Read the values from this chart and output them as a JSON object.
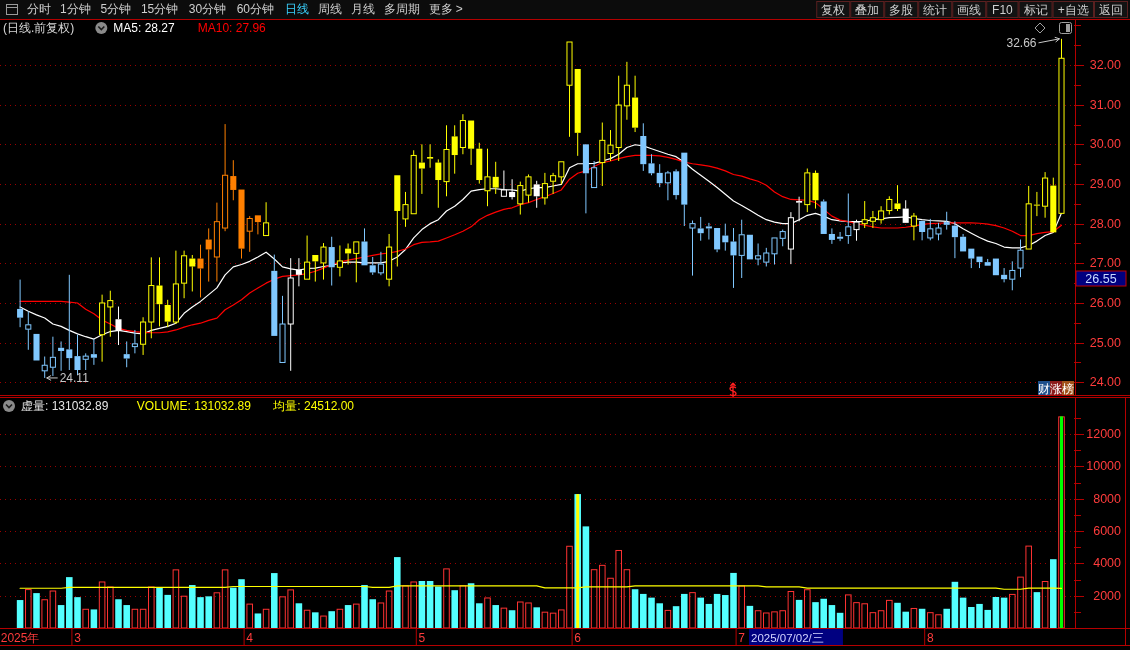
{
  "chart_data": [
    {
      "type": "candlestick",
      "title": "(日线.前复权)",
      "categories": [
        null,
        null,
        null,
        null,
        null,
        null,
        null,
        null,
        null,
        null,
        null,
        null,
        null,
        null,
        null,
        null,
        null,
        null,
        null,
        null,
        null,
        null,
        null,
        null,
        null,
        null,
        null,
        null,
        null,
        null,
        null,
        null,
        null,
        null,
        null,
        null,
        null,
        null,
        null,
        null,
        null,
        null,
        null,
        null,
        null,
        null,
        null,
        null,
        null,
        null,
        null,
        null,
        null,
        null,
        null,
        null,
        null,
        null,
        null,
        null,
        null,
        null,
        null,
        null,
        null,
        null,
        null,
        null,
        null,
        null,
        null,
        null,
        null,
        null,
        null,
        null,
        null,
        null,
        null,
        null,
        null,
        null,
        null,
        null,
        null,
        null,
        null,
        null,
        null,
        null,
        null,
        null,
        null,
        null,
        null,
        null,
        null,
        null,
        null,
        null,
        null,
        null,
        null,
        null,
        null,
        null,
        null,
        null,
        null,
        null,
        null,
        null,
        null,
        null,
        null,
        null,
        null,
        null,
        null,
        null,
        null,
        null,
        null,
        null,
        null,
        null,
        null,
        null
      ],
      "ohlc": [
        [
          25.85,
          26.59,
          25.39,
          25.63
        ],
        [
          25.34,
          25.79,
          24.82,
          25.45
        ],
        [
          25.22,
          25.22,
          24.55,
          24.55
        ],
        [
          24.29,
          24.65,
          24.11,
          24.43
        ],
        [
          24.38,
          25.15,
          24.16,
          24.63
        ],
        [
          24.87,
          25.03,
          24.29,
          24.79
        ],
        [
          24.83,
          26.71,
          24.31,
          24.61
        ],
        [
          24.66,
          25.2,
          24.18,
          24.31
        ],
        [
          24.58,
          24.73,
          24.31,
          24.66
        ],
        [
          24.71,
          25.09,
          24.44,
          24.62
        ],
        [
          25.2,
          26.21,
          24.52,
          26.0
        ],
        [
          25.9,
          26.31,
          25.15,
          26.06
        ],
        [
          25.59,
          25.91,
          24.94,
          25.3
        ],
        [
          24.71,
          25.03,
          24.38,
          24.6
        ],
        [
          24.9,
          25.32,
          24.73,
          24.97
        ],
        [
          24.96,
          25.64,
          24.69,
          25.52
        ],
        [
          25.52,
          27.15,
          25.11,
          26.44
        ],
        [
          26.44,
          27.15,
          25.41,
          25.97
        ],
        [
          25.95,
          26.08,
          25.39,
          25.53
        ],
        [
          25.52,
          27.32,
          25.47,
          26.48
        ],
        [
          26.5,
          27.32,
          26.12,
          27.19
        ],
        [
          27.12,
          27.21,
          26.29,
          26.92
        ],
        [
          27.12,
          27.47,
          26.14,
          26.87
        ],
        [
          27.6,
          27.88,
          26.54,
          27.35
        ],
        [
          27.16,
          28.53,
          26.54,
          28.05
        ],
        [
          27.89,
          30.51,
          27.81,
          29.22
        ],
        [
          29.2,
          29.6,
          28.59,
          28.85
        ],
        [
          28.86,
          28.86,
          27.12,
          27.37
        ],
        [
          27.81,
          28.19,
          27.29,
          28.13
        ],
        [
          28.21,
          28.21,
          27.73,
          28.04
        ],
        [
          27.7,
          28.54,
          27.7,
          28.02
        ],
        [
          26.81,
          27.22,
          25.17,
          25.17
        ],
        [
          24.5,
          26.18,
          24.5,
          25.47
        ],
        [
          25.47,
          27.13,
          24.29,
          26.63
        ],
        [
          26.84,
          27.13,
          26.42,
          26.71
        ],
        [
          26.6,
          27.7,
          26.6,
          27.03
        ],
        [
          27.21,
          27.21,
          26.54,
          27.05
        ],
        [
          27.01,
          27.51,
          26.59,
          27.41
        ],
        [
          27.41,
          27.67,
          26.44,
          26.9
        ],
        [
          26.9,
          27.45,
          26.67,
          27.06
        ],
        [
          27.37,
          27.5,
          26.97,
          27.25
        ],
        [
          27.25,
          27.54,
          26.52,
          27.54
        ],
        [
          27.55,
          27.88,
          26.95,
          26.95
        ],
        [
          26.95,
          27.16,
          26.71,
          26.77
        ],
        [
          26.76,
          27.29,
          26.7,
          26.98
        ],
        [
          26.6,
          27.74,
          26.42,
          27.41
        ],
        [
          29.22,
          29.22,
          26.92,
          28.32
        ],
        [
          28.12,
          28.8,
          27.92,
          28.48
        ],
        [
          28.25,
          29.85,
          28.25,
          29.72
        ],
        [
          29.54,
          30.0,
          28.75,
          29.39
        ],
        [
          29.68,
          30.0,
          29.41,
          29.64
        ],
        [
          29.54,
          29.62,
          28.4,
          29.1
        ],
        [
          29.06,
          30.48,
          28.69,
          29.87
        ],
        [
          30.2,
          30.48,
          29.26,
          29.73
        ],
        [
          29.92,
          30.76,
          29.75,
          30.6
        ],
        [
          30.6,
          30.6,
          29.48,
          29.89
        ],
        [
          29.89,
          30.04,
          29.01,
          29.1
        ],
        [
          28.83,
          29.89,
          28.44,
          29.18
        ],
        [
          29.18,
          29.56,
          28.75,
          28.91
        ],
        [
          28.69,
          29.34,
          28.69,
          28.85
        ],
        [
          28.8,
          29.12,
          28.61,
          28.67
        ],
        [
          28.5,
          29.06,
          28.23,
          28.96
        ],
        [
          28.72,
          29.24,
          28.53,
          29.18
        ],
        [
          28.99,
          29.08,
          28.4,
          28.69
        ],
        [
          28.65,
          29.28,
          28.48,
          29.01
        ],
        [
          29.07,
          29.28,
          28.75,
          29.21
        ],
        [
          29.18,
          29.56,
          28.99,
          29.56
        ],
        [
          31.49,
          32.58,
          30.19,
          32.58
        ],
        [
          31.9,
          31.9,
          29.71,
          30.29
        ],
        [
          30.0,
          30.0,
          28.26,
          29.27
        ],
        [
          28.91,
          29.58,
          28.91,
          29.41
        ],
        [
          29.54,
          30.55,
          28.95,
          30.1
        ],
        [
          29.77,
          30.36,
          29.58,
          29.98
        ],
        [
          29.92,
          31.73,
          29.58,
          30.99
        ],
        [
          30.97,
          32.08,
          30.62,
          31.49
        ],
        [
          31.18,
          31.73,
          30.31,
          30.42
        ],
        [
          30.21,
          30.53,
          29.33,
          29.5
        ],
        [
          29.52,
          29.75,
          29.22,
          29.27
        ],
        [
          29.28,
          29.5,
          28.92,
          29.02
        ],
        [
          29.03,
          29.33,
          28.59,
          29.28
        ],
        [
          29.32,
          29.37,
          28.61,
          28.72
        ],
        [
          29.79,
          29.79,
          27.94,
          28.48
        ],
        [
          27.89,
          28.08,
          26.69,
          28.0
        ],
        [
          27.88,
          28.17,
          27.57,
          27.76
        ],
        [
          27.93,
          28.02,
          27.6,
          27.88
        ],
        [
          27.89,
          27.89,
          27.28,
          27.35
        ],
        [
          27.7,
          28.0,
          27.32,
          27.53
        ],
        [
          27.55,
          27.89,
          26.38,
          27.2
        ],
        [
          27.2,
          28.1,
          26.63,
          27.72
        ],
        [
          27.72,
          27.72,
          27.1,
          27.1
        ],
        [
          27.11,
          27.5,
          26.95,
          27.19
        ],
        [
          27.03,
          27.39,
          26.92,
          27.26
        ],
        [
          27.24,
          27.64,
          26.97,
          27.64
        ],
        [
          27.63,
          27.85,
          27.43,
          27.8
        ],
        [
          27.36,
          28.29,
          26.98,
          28.15
        ],
        [
          28.57,
          28.68,
          28.06,
          28.53
        ],
        [
          28.48,
          29.39,
          28.29,
          29.28
        ],
        [
          29.28,
          29.34,
          28.38,
          28.59
        ],
        [
          28.56,
          28.61,
          27.74,
          27.74
        ],
        [
          27.74,
          27.88,
          27.49,
          27.59
        ],
        [
          27.67,
          27.79,
          27.56,
          27.62
        ],
        [
          27.7,
          28.76,
          27.49,
          27.92
        ],
        [
          27.85,
          28.1,
          27.57,
          28.04
        ],
        [
          28.0,
          28.57,
          27.89,
          28.1
        ],
        [
          28.06,
          28.32,
          27.89,
          28.15
        ],
        [
          28.1,
          28.44,
          28.0,
          28.32
        ],
        [
          28.33,
          28.69,
          28.23,
          28.61
        ],
        [
          28.51,
          28.97,
          28.32,
          28.37
        ],
        [
          28.38,
          28.59,
          28.02,
          28.02
        ],
        [
          27.94,
          28.27,
          27.58,
          28.19
        ],
        [
          28.07,
          28.07,
          27.58,
          27.79
        ],
        [
          27.64,
          28.12,
          27.58,
          27.87
        ],
        [
          27.74,
          28.02,
          27.58,
          27.89
        ],
        [
          28.04,
          28.3,
          27.85,
          27.97
        ],
        [
          27.95,
          28.06,
          27.13,
          27.66
        ],
        [
          27.67,
          27.74,
          27.3,
          27.3
        ],
        [
          27.37,
          27.37,
          26.88,
          27.12
        ],
        [
          27.17,
          27.17,
          26.88,
          27.03
        ],
        [
          27.03,
          27.11,
          26.94,
          26.94
        ],
        [
          27.12,
          27.12,
          26.7,
          26.7
        ],
        [
          26.71,
          26.88,
          26.52,
          26.6
        ],
        [
          26.6,
          27.05,
          26.32,
          26.82
        ],
        [
          26.88,
          27.6,
          26.65,
          27.33
        ],
        [
          27.36,
          28.95,
          27.36,
          28.5
        ],
        [
          28.48,
          28.8,
          28.19,
          28.46
        ],
        [
          28.44,
          29.3,
          28.15,
          29.15
        ],
        [
          28.96,
          29.16,
          27.78,
          27.78
        ],
        [
          28.26,
          32.66,
          28.26,
          32.17
        ]
      ],
      "colors": [
        "#80c8ff",
        "#80c8ff",
        "#80c8ff",
        "#80c8ff",
        "#80c8ff",
        "#80c8ff",
        "#80c8ff",
        "#80c8ff",
        "#80c8ff",
        "#80c8ff",
        "#ffff00",
        "#ffff00",
        "#ffffff",
        "#80c8ff",
        "#80c8ff",
        "#ffff00",
        "#ffff00",
        "#ffff00",
        "#ffff00",
        "#ffff00",
        "#ffff00",
        "#ffff00",
        "#ff8000",
        "#ff8000",
        "#ff8000",
        "#ff8000",
        "#ff8000",
        "#ff8000",
        "#ff8000",
        "#ff8000",
        "#ffff00",
        "#80c8ff",
        "#80c8ff",
        "#ffffff",
        "#ffffff",
        "#ffff00",
        "#ffff00",
        "#ffff00",
        "#80c8ff",
        "#ffff00",
        "#ffff00",
        "#ffff00",
        "#80c8ff",
        "#80c8ff",
        "#80c8ff",
        "#ffff00",
        "#ffff00",
        "#ffff00",
        "#ffff00",
        "#ffff00",
        "#ffff00",
        "#ffff00",
        "#ffff00",
        "#ffff00",
        "#ffff00",
        "#ffff00",
        "#ffff00",
        "#ffff00",
        "#ffff00",
        "#ffffff",
        "#ffffff",
        "#ffff00",
        "#ffff00",
        "#ffffff",
        "#ffff00",
        "#ffff00",
        "#ffff00",
        "#ffff00",
        "#ffff00",
        "#80c8ff",
        "#80c8ff",
        "#ffff00",
        "#ffff00",
        "#ffff00",
        "#ffff00",
        "#ffff00",
        "#80c8ff",
        "#80c8ff",
        "#80c8ff",
        "#80c8ff",
        "#80c8ff",
        "#80c8ff",
        "#80c8ff",
        "#80c8ff",
        "#80c8ff",
        "#80c8ff",
        "#80c8ff",
        "#80c8ff",
        "#80c8ff",
        "#80c8ff",
        "#80c8ff",
        "#80c8ff",
        "#80c8ff",
        "#80c8ff",
        "#ffffff",
        "#ffffff",
        "#ffff00",
        "#ffff00",
        "#80c8ff",
        "#80c8ff",
        "#80c8ff",
        "#80c8ff",
        "#ffffff",
        "#ffff00",
        "#ffff00",
        "#ffff00",
        "#ffff00",
        "#ffff00",
        "#ffffff",
        "#ffff00",
        "#80c8ff",
        "#80c8ff",
        "#80c8ff",
        "#80c8ff",
        "#80c8ff",
        "#80c8ff",
        "#80c8ff",
        "#80c8ff",
        "#80c8ff",
        "#80c8ff",
        "#80c8ff",
        "#80c8ff",
        "#80c8ff",
        "#ffff00",
        "#ffff00",
        "#ffff00",
        "#ffff00",
        "#ffff00"
      ],
      "series": [
        {
          "name": "MA5: 28.27",
          "type": "line",
          "color": "#ffffff",
          "values": [
            25.9,
            25.79,
            25.7,
            25.62,
            25.47,
            25.41,
            25.31,
            25.22,
            25.15,
            25.09,
            25.2,
            25.28,
            25.31,
            25.28,
            25.24,
            25.22,
            25.31,
            25.36,
            25.41,
            25.49,
            25.74,
            25.9,
            26.04,
            26.21,
            26.38,
            26.71,
            26.91,
            26.97,
            27.05,
            27.16,
            27.28,
            27.11,
            26.91,
            26.86,
            26.83,
            26.87,
            26.88,
            26.92,
            26.95,
            27.01,
            27.03,
            27.03,
            27.01,
            27.01,
            27.01,
            27.05,
            27.16,
            27.35,
            27.64,
            27.85,
            28.0,
            28.1,
            28.32,
            28.44,
            28.61,
            28.82,
            28.86,
            28.88,
            28.88,
            28.86,
            28.85,
            28.82,
            28.88,
            28.91,
            28.91,
            28.95,
            28.99,
            29.41,
            29.51,
            29.51,
            29.52,
            29.58,
            29.64,
            29.75,
            29.92,
            29.99,
            29.96,
            29.89,
            29.82,
            29.75,
            29.69,
            29.55,
            29.37,
            29.22,
            29.07,
            28.91,
            28.74,
            28.57,
            28.46,
            28.34,
            28.21,
            28.1,
            28.04,
            28.0,
            28.0,
            28.1,
            28.21,
            28.26,
            28.19,
            28.1,
            28.07,
            28.05,
            28.05,
            28.06,
            28.1,
            28.12,
            28.15,
            28.16,
            28.17,
            28.13,
            28.1,
            28.08,
            28.07,
            28.06,
            28.0,
            27.87,
            27.76,
            27.65,
            27.56,
            27.5,
            27.41,
            27.39,
            27.39,
            27.45,
            27.56,
            27.7,
            27.78,
            28.27
          ]
        },
        {
          "name": "MA10: 27.96",
          "type": "line",
          "color": "#ff0000",
          "values": [
            26.04,
            26.04,
            26.04,
            26.04,
            26.04,
            26.04,
            26.02,
            26.0,
            25.84,
            25.73,
            25.57,
            25.47,
            25.36,
            25.31,
            25.28,
            25.26,
            25.25,
            25.25,
            25.27,
            25.32,
            25.39,
            25.45,
            25.49,
            25.56,
            25.62,
            25.83,
            25.95,
            26.08,
            26.25,
            26.38,
            26.5,
            26.6,
            26.67,
            26.69,
            26.71,
            26.74,
            26.8,
            26.88,
            26.97,
            27.03,
            27.08,
            27.12,
            27.16,
            27.2,
            27.24,
            27.26,
            27.3,
            27.36,
            27.47,
            27.53,
            27.54,
            27.56,
            27.64,
            27.72,
            27.81,
            27.92,
            28.1,
            28.21,
            28.29,
            28.36,
            28.4,
            28.48,
            28.53,
            28.61,
            28.68,
            28.76,
            28.85,
            29.12,
            29.27,
            29.33,
            29.44,
            29.54,
            29.58,
            29.64,
            29.69,
            29.72,
            29.72,
            29.72,
            29.71,
            29.67,
            29.62,
            29.55,
            29.51,
            29.48,
            29.45,
            29.4,
            29.33,
            29.24,
            29.2,
            29.13,
            29.07,
            28.97,
            28.8,
            28.68,
            28.61,
            28.6,
            28.59,
            28.53,
            28.36,
            28.19,
            28.09,
            28.05,
            28.0,
            27.96,
            27.92,
            27.89,
            27.89,
            27.89,
            27.91,
            27.94,
            27.98,
            28.0,
            28.01,
            28.02,
            28.02,
            28.02,
            28.02,
            28.01,
            27.99,
            27.95,
            27.89,
            27.81,
            27.7,
            27.7,
            27.75,
            27.78,
            27.8,
            27.96
          ]
        }
      ],
      "ylim": [
        23.68,
        33.16
      ],
      "yticks": [
        {
          "value": 24,
          "label": "24.00"
        },
        {
          "value": 24.5,
          "label": null
        },
        {
          "value": 25,
          "label": "25.00"
        },
        {
          "value": 25.5,
          "label": null
        },
        {
          "value": 26,
          "label": "26.00"
        },
        {
          "value": 26.5,
          "label": null
        },
        {
          "value": 27,
          "label": "27.00"
        },
        {
          "value": 27.5,
          "label": null
        },
        {
          "value": 28,
          "label": "28.00"
        },
        {
          "value": 28.5,
          "label": null
        },
        {
          "value": 29,
          "label": "29.00"
        },
        {
          "value": 29.5,
          "label": null
        },
        {
          "value": 30,
          "label": "30.00"
        },
        {
          "value": 30.5,
          "label": null
        },
        {
          "value": 31,
          "label": "31.00"
        },
        {
          "value": 31.5,
          "label": null
        },
        {
          "value": 32,
          "label": "32.00"
        },
        {
          "value": 32.5,
          "label": null
        },
        {
          "value": 33,
          "label": null
        }
      ],
      "grid": "y",
      "legend": "top left",
      "annotations": [
        "分时",
        "1分钟",
        "5分钟",
        "15分钟",
        "30分钟",
        "60分钟",
        "日线",
        "周线",
        "月线",
        "多周期",
        "更多 >",
        "复权",
        "叠加",
        "多股",
        "统计",
        "画线",
        "F10",
        "标记",
        "+自选",
        "返回",
        "32.66",
        {
          "text": "24.11",
          "y": 24.11
        },
        "26.55",
        "财涨榜"
      ]
    },
    {
      "type": "bar",
      "categories": [
        "2025年",
        null,
        null,
        null,
        null,
        null,
        null,
        "3",
        null,
        null,
        null,
        null,
        null,
        null,
        null,
        null,
        null,
        null,
        null,
        null,
        null,
        null,
        null,
        null,
        null,
        null,
        null,
        null,
        "4",
        null,
        null,
        null,
        null,
        null,
        null,
        null,
        null,
        null,
        null,
        null,
        null,
        null,
        null,
        null,
        null,
        null,
        null,
        null,
        null,
        "5",
        null,
        null,
        null,
        null,
        null,
        null,
        null,
        null,
        null,
        null,
        null,
        null,
        null,
        null,
        null,
        null,
        null,
        null,
        "6",
        null,
        null,
        null,
        null,
        null,
        null,
        null,
        null,
        null,
        null,
        null,
        null,
        null,
        null,
        null,
        null,
        null,
        null,
        null,
        "7",
        null,
        null,
        null,
        null,
        null,
        null,
        null,
        null,
        null,
        null,
        null,
        null,
        null,
        null,
        null,
        null,
        null,
        null,
        null,
        null,
        null,
        null,
        "8",
        null,
        null,
        null,
        null,
        null,
        null,
        null,
        null,
        null,
        null,
        null,
        null,
        null,
        null,
        null,
        null
      ],
      "series": [
        {
          "values": [
            1730,
            2410,
            2160,
            1780,
            2320,
            1420,
            3150,
            1910,
            1190,
            1150,
            2880,
            2570,
            1780,
            1420,
            1190,
            1190,
            2570,
            2500,
            2050,
            3630,
            2000,
            2660,
            1910,
            1960,
            2210,
            3630,
            2500,
            3020,
            1510,
            900,
            1190,
            3400,
            1960,
            2390,
            1530,
            1130,
            970,
            770,
            1040,
            1190,
            1420,
            1510,
            2660,
            1780,
            1580,
            2320,
            4390,
            2640,
            2880,
            2910,
            2910,
            2570,
            3690,
            2340,
            2640,
            2770,
            1530,
            1890,
            1420,
            1260,
            1100,
            1640,
            1580,
            1280,
            1010,
            950,
            1150,
            5090,
            8290,
            6290,
            3640,
            3910,
            3110,
            4830,
            3640,
            2400,
            2110,
            1880,
            1530,
            1120,
            1350,
            2110,
            2220,
            1880,
            1490,
            2110,
            2040,
            3410,
            2630,
            1370,
            1100,
            960,
            1030,
            1100,
            2290,
            1740,
            2400,
            1600,
            1810,
            1420,
            940,
            2080,
            1600,
            1530,
            980,
            1100,
            1740,
            1560,
            1010,
            1240,
            1190,
            980,
            850,
            1190,
            2860,
            1880,
            1300,
            1490,
            1120,
            1920,
            1880,
            2110,
            3180,
            5100,
            2220,
            2910,
            4260,
            13100
          ],
          "colors": [
            "#54ffff",
            "#ff3232",
            "#54ffff",
            "#ff3232",
            "#ff3232",
            "#54ffff",
            "#54ffff",
            "#54ffff",
            "#ff3232",
            "#54ffff",
            "#ff3232",
            "#ff3232",
            "#54ffff",
            "#54ffff",
            "#ff3232",
            "#ff3232",
            "#ff3232",
            "#54ffff",
            "#54ffff",
            "#ff3232",
            "#ff3232",
            "#54ffff",
            "#54ffff",
            "#54ffff",
            "#ff3232",
            "#ff3232",
            "#54ffff",
            "#54ffff",
            "#ff3232",
            "#54ffff",
            "#ff3232",
            "#54ffff",
            "#ff3232",
            "#ff3232",
            "#54ffff",
            "#ff3232",
            "#54ffff",
            "#ff3232",
            "#54ffff",
            "#ff3232",
            "#54ffff",
            "#ff3232",
            "#54ffff",
            "#54ffff",
            "#ff3232",
            "#ff3232",
            "#54ffff",
            "#ff3232",
            "#ff3232",
            "#54ffff",
            "#54ffff",
            "#54ffff",
            "#ff3232",
            "#54ffff",
            "#ff3232",
            "#54ffff",
            "#54ffff",
            "#ff3232",
            "#54ffff",
            "#ff3232",
            "#54ffff",
            "#ff3232",
            "#ff3232",
            "#54ffff",
            "#ff3232",
            "#ff3232",
            "#ff3232",
            "#ff3232",
            "#54ffff",
            "#54ffff",
            "#ff3232",
            "#ff3232",
            "#ff3232",
            "#ff3232",
            "#ff3232",
            "#54ffff",
            "#54ffff",
            "#54ffff",
            "#54ffff",
            "#ff3232",
            "#54ffff",
            "#54ffff",
            "#ff3232",
            "#54ffff",
            "#54ffff",
            "#54ffff",
            "#54ffff",
            "#54ffff",
            "#ff3232",
            "#54ffff",
            "#ff3232",
            "#ff3232",
            "#ff3232",
            "#ff3232",
            "#ff3232",
            "#54ffff",
            "#ff3232",
            "#54ffff",
            "#54ffff",
            "#54ffff",
            "#54ffff",
            "#ff3232",
            "#ff3232",
            "#ff3232",
            "#ff3232",
            "#ff3232",
            "#ff3232",
            "#54ffff",
            "#54ffff",
            "#ff3232",
            "#54ffff",
            "#ff3232",
            "#ff3232",
            "#54ffff",
            "#54ffff",
            "#54ffff",
            "#54ffff",
            "#54ffff",
            "#54ffff",
            "#54ffff",
            "#54ffff",
            "#ff3232",
            "#ff3232",
            "#ff3232",
            "#54ffff",
            "#ff3232",
            "#54ffff",
            "#ff3232"
          ]
        },
        {
          "values": [
            null,
            null,
            null,
            null,
            null,
            null,
            null,
            null,
            null,
            null,
            null,
            null,
            null,
            null,
            null,
            null,
            null,
            null,
            null,
            null,
            null,
            null,
            null,
            null,
            null,
            null,
            null,
            null,
            null,
            null,
            null,
            null,
            null,
            null,
            null,
            null,
            null,
            null,
            null,
            null,
            null,
            null,
            null,
            null,
            null,
            null,
            null,
            null,
            null,
            null,
            null,
            null,
            null,
            null,
            null,
            null,
            null,
            null,
            null,
            null,
            null,
            null,
            null,
            null,
            null,
            null,
            null,
            null,
            8290,
            null,
            null,
            null,
            null,
            null,
            null,
            null,
            null,
            null,
            null,
            null,
            null,
            null,
            null,
            null,
            null,
            null,
            null,
            null,
            null,
            null,
            null,
            null,
            null,
            null,
            null,
            null,
            null,
            null,
            null,
            null,
            null,
            null,
            null,
            null,
            null,
            null,
            null,
            null,
            null,
            null,
            null,
            null,
            null,
            null,
            null,
            null,
            null,
            null,
            null,
            null,
            null,
            null,
            null,
            null,
            null,
            null,
            null,
            13100
          ],
          "colors": [
            null,
            null,
            null,
            null,
            null,
            null,
            null,
            null,
            null,
            null,
            null,
            null,
            null,
            null,
            null,
            null,
            null,
            null,
            null,
            null,
            null,
            null,
            null,
            null,
            null,
            null,
            null,
            null,
            null,
            null,
            null,
            null,
            null,
            null,
            null,
            null,
            null,
            null,
            null,
            null,
            null,
            null,
            null,
            null,
            null,
            null,
            null,
            null,
            null,
            null,
            null,
            null,
            null,
            null,
            null,
            null,
            null,
            null,
            null,
            null,
            null,
            null,
            null,
            null,
            null,
            null,
            null,
            null,
            "#ffff00",
            null,
            null,
            null,
            null,
            null,
            null,
            null,
            null,
            null,
            null,
            null,
            null,
            null,
            null,
            null,
            null,
            null,
            null,
            null,
            null,
            null,
            null,
            null,
            null,
            null,
            null,
            null,
            null,
            null,
            null,
            null,
            null,
            null,
            null,
            null,
            null,
            null,
            null,
            null,
            null,
            null,
            null,
            null,
            null,
            null,
            null,
            null,
            null,
            null,
            null,
            null,
            null,
            null,
            null,
            null,
            null,
            null,
            null,
            "#00ff00"
          ]
        },
        {
          "name": "均量: 24512.00",
          "type": "line",
          "color": "#ffff00",
          "values": [
            2460,
            2460,
            2460,
            2460,
            2460,
            2460,
            2520,
            2520,
            2520,
            2520,
            2520,
            2520,
            2520,
            2520,
            2520,
            2520,
            2520,
            2520,
            2520,
            2520,
            2520,
            2520,
            2520,
            2520,
            2520,
            2520,
            2570,
            2570,
            2570,
            2570,
            2570,
            2570,
            2570,
            2570,
            2570,
            2570,
            2570,
            2570,
            2570,
            2570,
            2570,
            2570,
            2570,
            2520,
            2520,
            2520,
            2610,
            2610,
            2610,
            2610,
            2610,
            2610,
            2610,
            2610,
            2610,
            2610,
            2610,
            2610,
            2610,
            2610,
            2610,
            2610,
            2610,
            2610,
            2480,
            2480,
            2480,
            2480,
            2480,
            2540,
            2540,
            2540,
            2540,
            2540,
            2540,
            2610,
            2610,
            2610,
            2610,
            2610,
            2610,
            2610,
            2610,
            2610,
            2610,
            2610,
            2610,
            2610,
            2610,
            2610,
            2610,
            2540,
            2540,
            2540,
            2540,
            2540,
            2470,
            2470,
            2470,
            2470,
            2470,
            2470,
            2470,
            2470,
            2470,
            2470,
            2470,
            2470,
            2470,
            2470,
            2470,
            2470,
            2470,
            2470,
            2470,
            2470,
            2470,
            2470,
            2470,
            2470,
            2400,
            2400,
            2400,
            2470,
            2470,
            2470,
            2470,
            2450
          ]
        }
      ],
      "ylim": [
        0,
        14300
      ],
      "yticks": [
        {
          "value": 1000,
          "label": null
        },
        2000,
        {
          "value": 3000,
          "label": null
        },
        4000,
        {
          "value": 5000,
          "label": null
        },
        6000,
        {
          "value": 7000,
          "label": null
        },
        8000,
        {
          "value": 9000,
          "label": null
        },
        10000,
        {
          "value": 11000,
          "label": null
        },
        12000,
        {
          "value": 13000,
          "label": null
        }
      ],
      "grid": "y",
      "legend": "top left",
      "annotations": [
        "虚量: 131032.89",
        "VOLUME: 131032.89",
        "2025/07/02/三"
      ]
    }
  ]
}
